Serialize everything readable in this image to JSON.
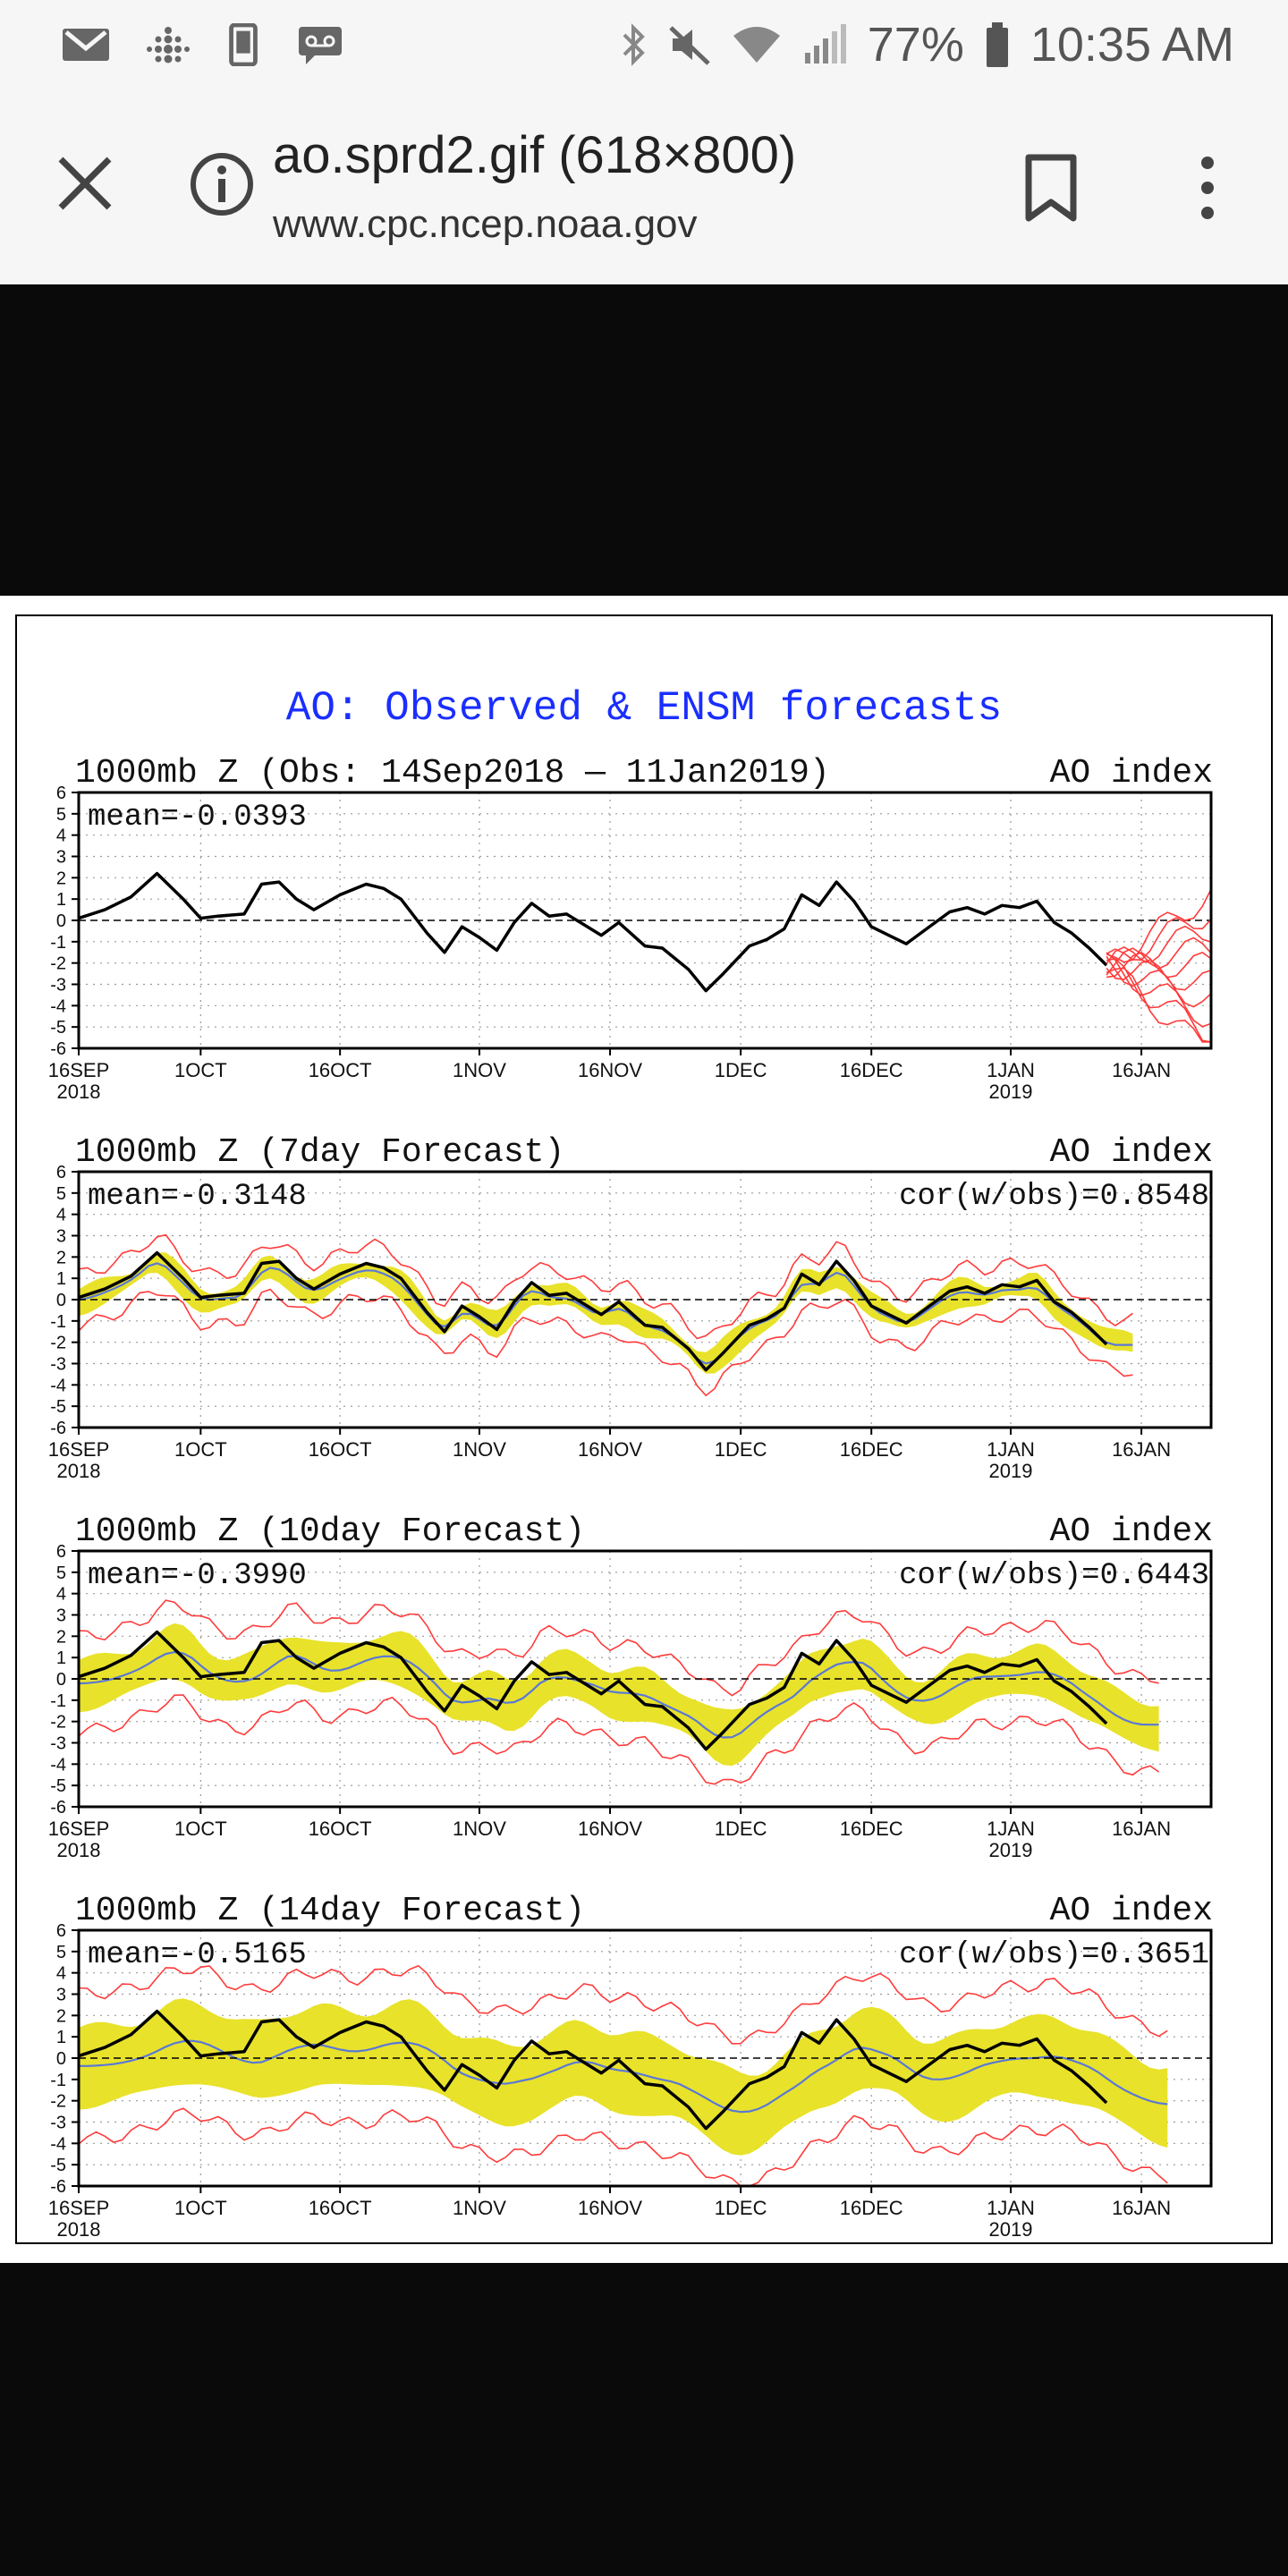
{
  "status_bar": {
    "battery": "77%",
    "time": "10:35 AM",
    "left_icons": [
      "gmail-icon",
      "fitbit-icon",
      "phone-frame-icon",
      "voicemail-icon"
    ],
    "right_icons": [
      "bluetooth-icon",
      "mute-icon",
      "wifi-icon",
      "signal-icon",
      "battery-icon"
    ]
  },
  "browser": {
    "title": "ao.sprd2.gif (618×800)",
    "url": "www.cpc.ncep.noaa.gov"
  },
  "colors": {
    "obs_line": "#000000",
    "ensemble_mean": "#5a78d6",
    "spread": "#e8e22a",
    "members": "#ff3b3b",
    "title": "#1a2eff"
  },
  "chart_data": {
    "type": "line",
    "title": "AO: Observed & ENSM forecasts",
    "x_ticks": [
      {
        "day": 0,
        "label": "16SEP",
        "sub": "2018"
      },
      {
        "day": 14,
        "label": "1OCT",
        "sub": ""
      },
      {
        "day": 30,
        "label": "16OCT",
        "sub": ""
      },
      {
        "day": 46,
        "label": "1NOV",
        "sub": ""
      },
      {
        "day": 61,
        "label": "16NOV",
        "sub": ""
      },
      {
        "day": 76,
        "label": "1DEC",
        "sub": ""
      },
      {
        "day": 91,
        "label": "16DEC",
        "sub": ""
      },
      {
        "day": 107,
        "label": "1JAN",
        "sub": "2019"
      },
      {
        "day": 122,
        "label": "16JAN",
        "sub": ""
      }
    ],
    "x_range": [
      0,
      130
    ],
    "ylim": [
      -6,
      6
    ],
    "y_ticks": [
      6,
      5,
      4,
      3,
      2,
      1,
      0,
      -1,
      -2,
      -3,
      -4,
      -5,
      -6
    ],
    "observed": {
      "x": [
        0,
        3,
        6,
        9,
        12,
        14,
        16,
        19,
        21,
        23,
        25,
        27,
        30,
        33,
        35,
        37,
        40,
        42,
        44,
        46,
        48,
        50,
        52,
        54,
        56,
        58,
        60,
        62,
        65,
        67,
        70,
        72,
        74,
        77,
        79,
        81,
        83,
        85,
        87,
        89,
        91,
        93,
        95,
        97,
        100,
        102,
        104,
        106,
        108,
        110,
        112,
        114,
        116,
        118
      ],
      "y": [
        0.1,
        0.5,
        1.1,
        2.2,
        1.0,
        0.1,
        0.2,
        0.3,
        1.7,
        1.8,
        1.0,
        0.5,
        1.2,
        1.7,
        1.5,
        1.0,
        -0.6,
        -1.5,
        -0.3,
        -0.8,
        -1.4,
        -0.1,
        0.8,
        0.2,
        0.3,
        -0.2,
        -0.7,
        -0.1,
        -1.2,
        -1.3,
        -2.3,
        -3.3,
        -2.5,
        -1.2,
        -0.9,
        -0.4,
        1.2,
        0.7,
        1.8,
        0.9,
        -0.3,
        -0.7,
        -1.1,
        -0.5,
        0.4,
        0.6,
        0.3,
        0.7,
        0.6,
        0.9,
        -0.1,
        -0.6,
        -1.3,
        -2.1
      ]
    },
    "panels": [
      {
        "header": "1000mb Z (Obs: 14Sep2018 — 11Jan2019)",
        "index_label": "AO index",
        "mean_label": "mean=-0.0393",
        "cor_label": "",
        "kind": "observed",
        "lag": 0,
        "spread": 0
      },
      {
        "header": "1000mb Z (7day Forecast)",
        "index_label": "AO index",
        "mean_label": "mean=-0.3148",
        "cor_label": "cor(w/obs)=0.8548",
        "kind": "forecast",
        "lag": 0,
        "spread": 0.5
      },
      {
        "header": "1000mb Z (10day Forecast)",
        "index_label": "AO index",
        "mean_label": "mean=-0.3990",
        "cor_label": "cor(w/obs)=0.6443",
        "kind": "forecast",
        "lag": 2,
        "spread": 1.1
      },
      {
        "header": "1000mb Z (14day Forecast)",
        "index_label": "AO index",
        "mean_label": "mean=-0.5165",
        "cor_label": "cor(w/obs)=0.3651",
        "kind": "forecast",
        "lag": 4,
        "spread": 1.8
      }
    ]
  }
}
